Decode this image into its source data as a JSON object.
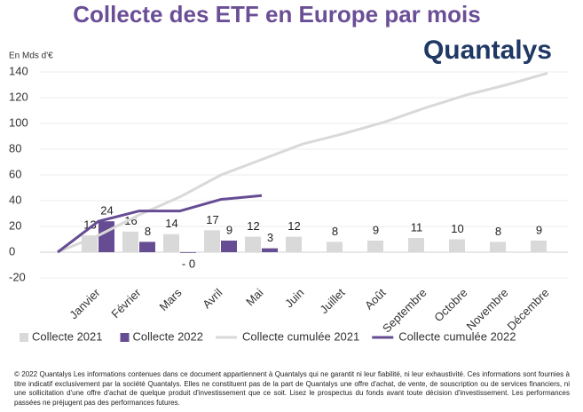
{
  "chart_data": {
    "type": "combo",
    "title": "Collecte des ETF en Europe par mois",
    "logo": "Quantalys",
    "y_label": "En Mds d'€",
    "categories": [
      null,
      "Janvier",
      "Février",
      "Mars",
      "Avril",
      "Mai",
      "Juin",
      "Juillet",
      "Août",
      "Septembre",
      "Octobre",
      "Novembre",
      "Décembre"
    ],
    "series": [
      {
        "name": "Collecte 2021",
        "type": "bar",
        "color": "#d9d9d9",
        "values": [
          null,
          13,
          16,
          14,
          17,
          12,
          12,
          8,
          9,
          11,
          10,
          8,
          9
        ]
      },
      {
        "name": "Collecte 2022",
        "type": "bar",
        "color": "#664c93",
        "values": [
          null,
          24,
          8,
          -0.2,
          9,
          3,
          null,
          null,
          null,
          null,
          null,
          null,
          null
        ],
        "value_labels": [
          null,
          "24",
          "8",
          "- 0",
          "9",
          "3",
          null,
          null,
          null,
          null,
          null,
          null,
          null
        ]
      },
      {
        "name": "Collecte cumulée 2021",
        "type": "line",
        "color": "#d9d9d9",
        "values": [
          0,
          13,
          29,
          43,
          60,
          72,
          84,
          92,
          101,
          112,
          122,
          130,
          139
        ]
      },
      {
        "name": "Collecte cumulée 2022",
        "type": "line",
        "color": "#664c93",
        "values": [
          0,
          24,
          32,
          32,
          41,
          44,
          null,
          null,
          null,
          null,
          null,
          null,
          null
        ]
      }
    ],
    "ylim": [
      -20,
      140
    ],
    "yticks": [
      -20,
      0,
      20,
      40,
      60,
      80,
      100,
      120,
      140
    ],
    "grid": true,
    "legend": "bottom",
    "footnote": "© 2022 Quantalys Les informations contenues dans ce document appartiennent à Quantalys qui ne garantit ni leur fiabilité, ni leur exhaustivité. Ces informations sont fournies à titre indicatif exclusivement par la société Quantalys. Elles ne constituent pas de la part de Quantalys une offre d'achat, de vente, de souscription ou de services financiers, ni une sollicitation d'une offre d'achat de quelque produit d'investissement que ce soit. Lisez le prospectus du fonds avant toute décision d'investissement. Les performances passées ne préjugent pas des performances futures."
  }
}
